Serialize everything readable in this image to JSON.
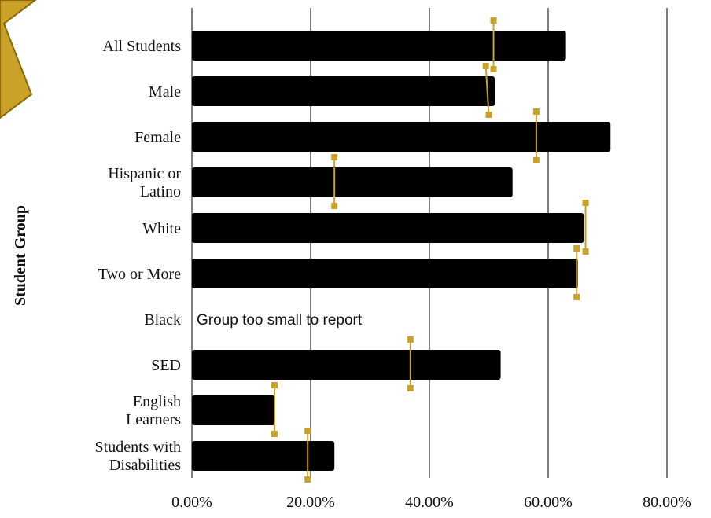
{
  "chart_data": {
    "type": "bar",
    "orientation": "horizontal",
    "ylabel": "Student Group",
    "xlim": [
      0,
      80
    ],
    "x_ticks": [
      0,
      20,
      40,
      60,
      80
    ],
    "x_tick_labels": [
      "0.00%",
      "20.00%",
      "40.00%",
      "60.00%",
      "80.00%"
    ],
    "grid": "vertical",
    "categories": [
      {
        "label": "All  Students",
        "value": 63,
        "marker": 50.8,
        "range": [
          50.8,
          50.8
        ]
      },
      {
        "label": "Male",
        "value": 51,
        "marker": 49.8,
        "range": [
          49.5,
          50.0
        ]
      },
      {
        "label": "Female",
        "value": 70.5,
        "marker": 58,
        "range": [
          58,
          58
        ]
      },
      {
        "label": "Hispanic or\nLatino",
        "value": 54,
        "marker": 24,
        "range": [
          24,
          24
        ]
      },
      {
        "label": "White",
        "value": 66,
        "marker": 66.3,
        "range": [
          66.3,
          66.3
        ]
      },
      {
        "label": "Two or More",
        "value": 65,
        "marker": 64.8,
        "range": [
          64.8,
          64.8
        ]
      },
      {
        "label": "Black",
        "value": null,
        "note": "Group too small  to report"
      },
      {
        "label": "SED",
        "value": 52,
        "marker": 36.8,
        "range": [
          36.8,
          36.8
        ]
      },
      {
        "label": "English\nLearners",
        "value": 14,
        "marker": 13.9,
        "range": [
          13.9,
          13.9
        ]
      },
      {
        "label": "Students with\nDisabilities",
        "value": 24,
        "marker": 19.5,
        "range": [
          19.5,
          19.5
        ]
      }
    ],
    "bar_color": "#000000",
    "marker_color": "#c9a227",
    "legend": "none"
  },
  "decoration": {
    "badge_color": "#c9a227",
    "badge_stroke": "#8a6a00"
  }
}
